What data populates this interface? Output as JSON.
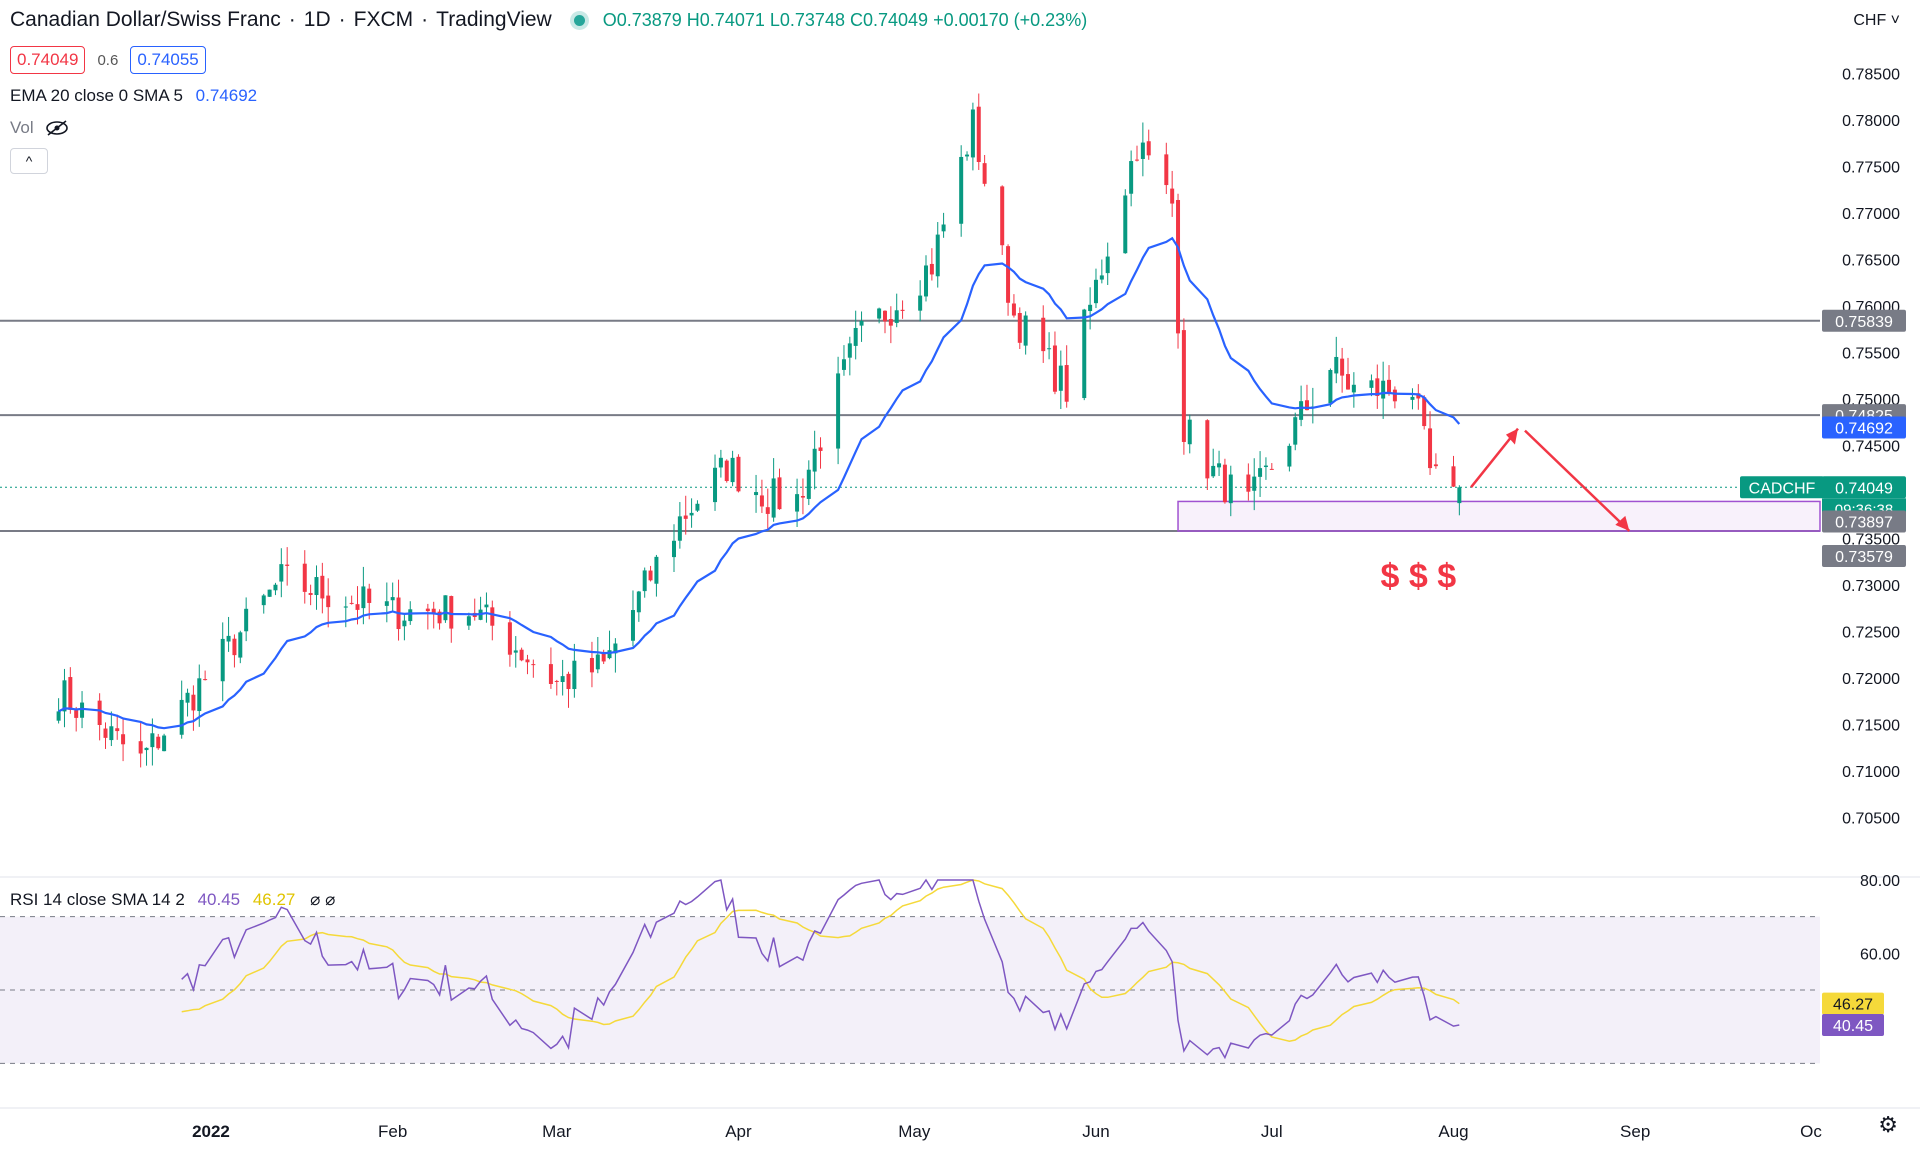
{
  "header": {
    "symbol": "Canadian Dollar/Swiss Franc",
    "interval": "1D",
    "exchange": "FXCM",
    "platform": "TradingView",
    "open": "O0.73879",
    "high": "H0.74071",
    "low": "L0.73748",
    "close": "C0.74049",
    "change": "+0.00170 (+0.23%)",
    "bid": "0.74049",
    "spread": "0.6",
    "ask": "0.74055"
  },
  "ema_legend": {
    "label": "EMA 20 close 0 SMA 5",
    "value": "0.74692"
  },
  "vol_label": "Vol",
  "rsi_legend": {
    "label": "RSI 14 close SMA 14 2",
    "rsi_value": "40.45",
    "sma_value": "46.27",
    "icons": "⌀ ⌀"
  },
  "currency_label": "CHF",
  "ticker_tag": "CADCHF",
  "countdown": "09:36:38",
  "annotation_text": "$ $ $",
  "colors": {
    "up": "#089981",
    "down": "#f23645",
    "ema": "#2962ff",
    "rsi": "#7e57c2",
    "rsi_sma": "#f5d93a",
    "level": "#787b86",
    "zone": "#a052d1"
  },
  "chart_data": [
    {
      "type": "candlestick",
      "title": "Canadian Dollar/Swiss Franc",
      "x_labels": [
        "2022",
        "Feb",
        "Mar",
        "Apr",
        "May",
        "Jun",
        "Jul",
        "Aug",
        "Sep",
        "Oc"
      ],
      "y_ticks": [
        "0.78500",
        "0.78000",
        "0.77500",
        "0.77000",
        "0.76500",
        "0.76000",
        "0.75500",
        "0.75000",
        "0.74500",
        "0.74000",
        "0.73500",
        "0.73000",
        "0.72500",
        "0.72000",
        "0.71500",
        "0.71000",
        "0.70500"
      ],
      "ylim": [
        0.7015,
        0.7875
      ],
      "horizontal_levels": [
        {
          "value": 0.75839,
          "label": "0.75839"
        },
        {
          "value": 0.74825,
          "label": "0.74825"
        },
        {
          "value": 0.73579,
          "label": "0.73579"
        }
      ],
      "zone": {
        "top": 0.73897,
        "bottom": 0.73579,
        "top_label": "0.73897"
      },
      "current_price": "0.74049",
      "ema_value_label": "0.74692",
      "series": [
        {
          "name": "CADCHF",
          "type": "candlestick"
        },
        {
          "name": "EMA 20",
          "type": "line"
        }
      ],
      "key_points": [
        {
          "date": "2021-12-06",
          "close": 0.7185
        },
        {
          "date": "2021-12-20",
          "close": 0.7111
        },
        {
          "date": "2022-01-13",
          "close": 0.7305
        },
        {
          "date": "2022-02-01",
          "close": 0.7271
        },
        {
          "date": "2022-02-15",
          "close": 0.7272
        },
        {
          "date": "2022-03-01",
          "close": 0.7195
        },
        {
          "date": "2022-03-09",
          "close": 0.7212
        },
        {
          "date": "2022-03-22",
          "close": 0.737
        },
        {
          "date": "2022-03-30",
          "close": 0.7428
        },
        {
          "date": "2022-04-06",
          "close": 0.7394
        },
        {
          "date": "2022-04-11",
          "close": 0.7392
        },
        {
          "date": "2022-04-21",
          "close": 0.756
        },
        {
          "date": "2022-05-04",
          "close": 0.7645
        },
        {
          "date": "2022-05-11",
          "close": 0.7795
        },
        {
          "date": "2022-05-18",
          "close": 0.759
        },
        {
          "date": "2022-05-27",
          "close": 0.751
        },
        {
          "date": "2022-06-08",
          "close": 0.7775
        },
        {
          "date": "2022-06-14",
          "close": 0.771
        },
        {
          "date": "2022-06-16",
          "close": 0.747
        },
        {
          "date": "2022-06-21",
          "close": 0.742
        },
        {
          "date": "2022-06-27",
          "close": 0.7385
        },
        {
          "date": "2022-07-11",
          "close": 0.7535
        },
        {
          "date": "2022-07-15",
          "close": 0.751
        },
        {
          "date": "2022-07-25",
          "close": 0.751
        },
        {
          "date": "2022-07-28",
          "close": 0.742
        },
        {
          "date": "2022-08-01",
          "close": 0.7388
        },
        {
          "date": "2022-08-02",
          "close": 0.7405
        }
      ]
    },
    {
      "type": "line",
      "title": "RSI 14 close SMA 14 2",
      "y_ticks": [
        "80.00",
        "60.00"
      ],
      "ylim": [
        20,
        80
      ],
      "bands": [
        30,
        50,
        70
      ],
      "series": [
        {
          "name": "RSI",
          "last": 40.45
        },
        {
          "name": "SMA 14",
          "last": 46.27
        }
      ]
    }
  ]
}
